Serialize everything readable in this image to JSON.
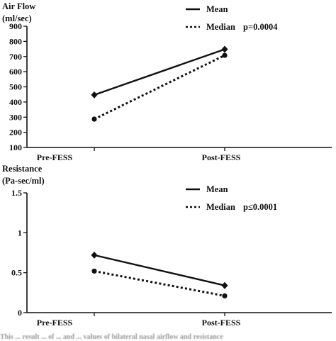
{
  "chart_data": [
    {
      "type": "line",
      "ylabel_line1": "Air Flow",
      "ylabel_line2": "(ml/sec)",
      "categories": [
        "Pre-FESS",
        "Post-FESS"
      ],
      "yticks": [
        100,
        200,
        300,
        400,
        500,
        600,
        700,
        800,
        900
      ],
      "ylim": [
        100,
        900
      ],
      "series": [
        {
          "name": "Mean",
          "values": [
            447,
            748
          ],
          "style": "solid",
          "marker": "diamond"
        },
        {
          "name": "Median",
          "values": [
            287,
            708
          ],
          "style": "dotted",
          "marker": "circle"
        }
      ],
      "annotation": "p=0.0004",
      "legend_position": "top-right",
      "grid": false
    },
    {
      "type": "line",
      "ylabel_line1": "Resistance",
      "ylabel_line2": "(Pa-sec/ml)",
      "categories": [
        "Pre-FESS",
        "Post-FESS"
      ],
      "yticks": [
        "0",
        "0.5",
        "1",
        "1.5"
      ],
      "ylim": [
        0,
        1.5
      ],
      "series": [
        {
          "name": "Mean",
          "values": [
            0.72,
            0.34
          ],
          "style": "solid",
          "marker": "diamond"
        },
        {
          "name": "Median",
          "values": [
            0.52,
            0.21
          ],
          "style": "dotted",
          "marker": "circle"
        }
      ],
      "annotation": "p≤0.0001",
      "legend_position": "top-right",
      "grid": false
    }
  ],
  "caption": "This ... result ... of ... and ... values of bilateral nasal airflow and resistance"
}
